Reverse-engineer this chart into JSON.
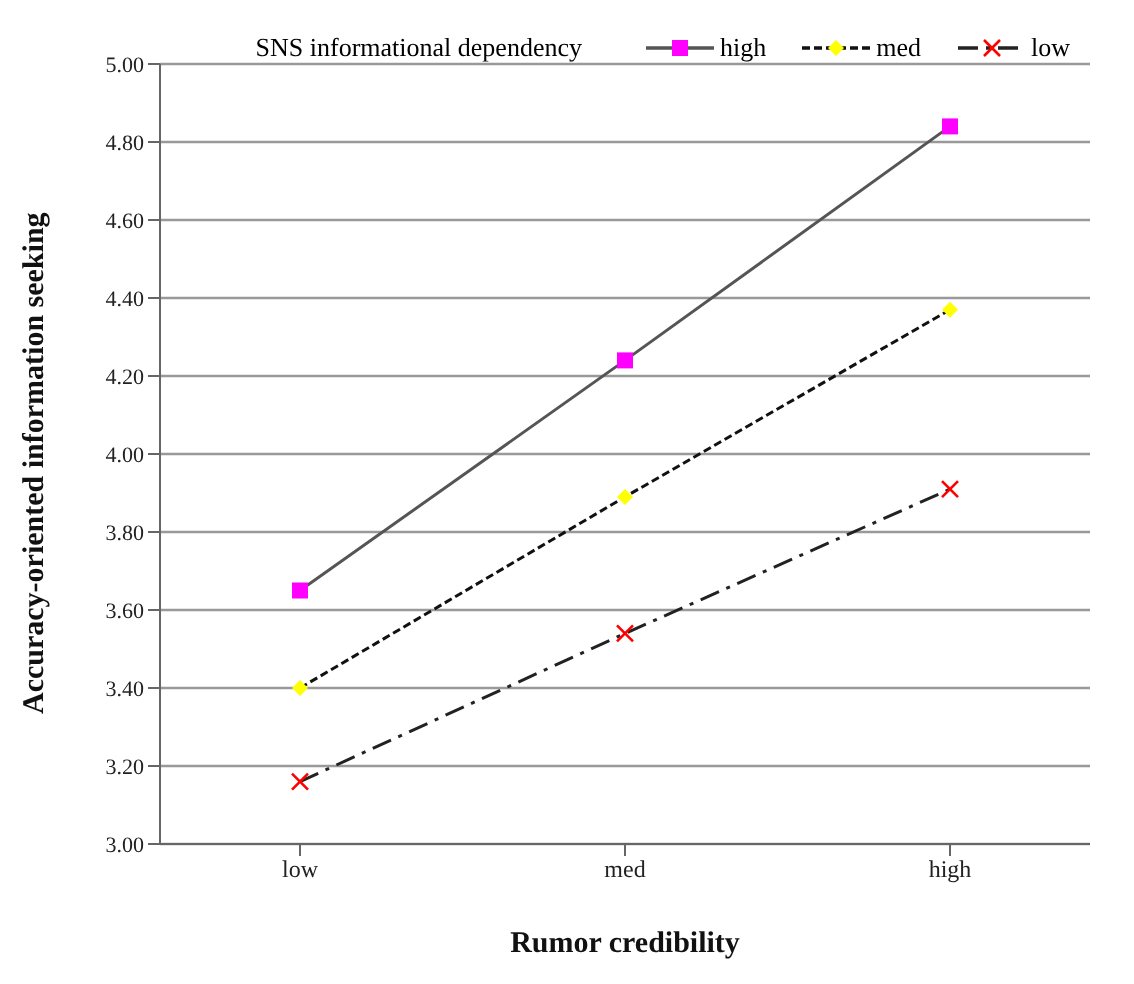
{
  "chart_data": {
    "type": "line",
    "xlabel": "Rumor credibility",
    "ylabel": "Accuracy-oriented information seeking",
    "legend_title": "SNS informational dependency",
    "legend": "top",
    "grid": "y",
    "categories": [
      "low",
      "med",
      "high"
    ],
    "ylim": [
      3,
      5
    ],
    "yticks": [
      {
        "value": 3,
        "label": "3.00"
      },
      {
        "value": 3.2,
        "label": "3.20"
      },
      {
        "value": 3.4,
        "label": "3.40"
      },
      {
        "value": 3.6,
        "label": "3.60"
      },
      {
        "value": 3.8,
        "label": "3.80"
      },
      {
        "value": 4,
        "label": "4.00"
      },
      {
        "value": 4.2,
        "label": "4.20"
      },
      {
        "value": 4.4,
        "label": "4.40"
      },
      {
        "value": 4.6,
        "label": "4.60"
      },
      {
        "value": 4.8,
        "label": "4.80"
      },
      {
        "value": 5,
        "label": "5.00"
      }
    ],
    "series": [
      {
        "name": "high",
        "color": "#ff00ff",
        "marker": "square",
        "line_style": "solid",
        "values": [
          3.65,
          4.24,
          4.84
        ]
      },
      {
        "name": "med",
        "color": "#ffff00",
        "marker": "diamond",
        "line_style": "dotted",
        "values": [
          3.4,
          3.89,
          4.37
        ]
      },
      {
        "name": "low",
        "color": "#ff0000",
        "marker": "cross",
        "line_style": "dashed",
        "values": [
          3.16,
          3.54,
          3.91
        ]
      }
    ]
  }
}
